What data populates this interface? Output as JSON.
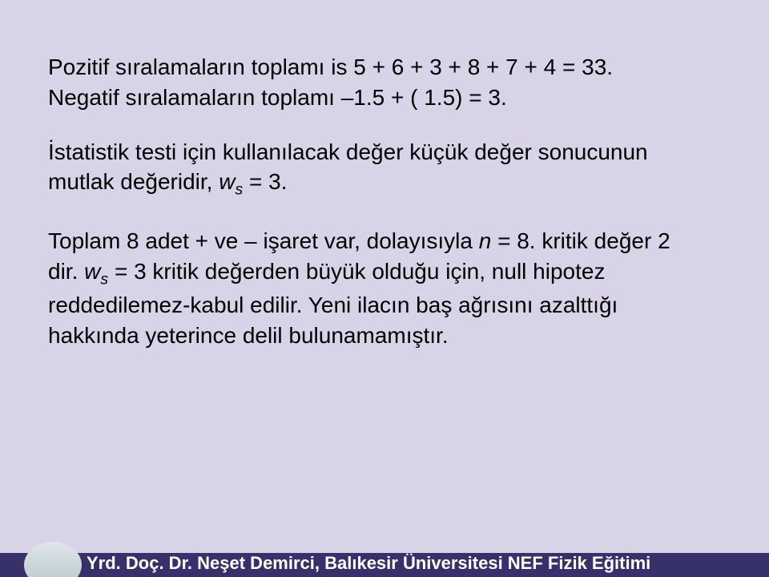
{
  "slide": {
    "background_color": "#d8d3e6",
    "body_fontsize": 28,
    "p1a": "Pozitif sıralamaların toplamı is  5 + 6 + 3 + 8 + 7 + 4 = 33.",
    "p1b_pre": "Negatif sıralamaların toplamı ",
    "p1b_post": "1.5 + ( 1.5) = 3.",
    "p2_pre": "İstatistik testi için kullanılacak değer küçük değer sonucunun mutlak değeridir, ",
    "p2_w": "w",
    "p2_s": "s",
    "p2_post": " = 3.",
    "p3_pre": "Toplam  8 adet + ve – işaret var, dolayısıyla ",
    "p3_n": "n",
    "p3_post1": " = 8. kritik değer 2 dir. ",
    "p3_w": "w",
    "p3_s": "s",
    "p3_post2": " = 3  kritik değerden büyük olduğu için, null hipotez reddedilemez-kabul edilir. Yeni ilacın baş ağrısını azalttığı hakkında yeterince delil bulunamamıştır."
  },
  "footer": {
    "text": "Yrd. Doç. Dr. Neşet Demirci, Balıkesir Üniversitesi NEF Fizik Eğitimi",
    "band_color": "#38306b",
    "text_color": "#ffffff",
    "fontsize": 22
  }
}
